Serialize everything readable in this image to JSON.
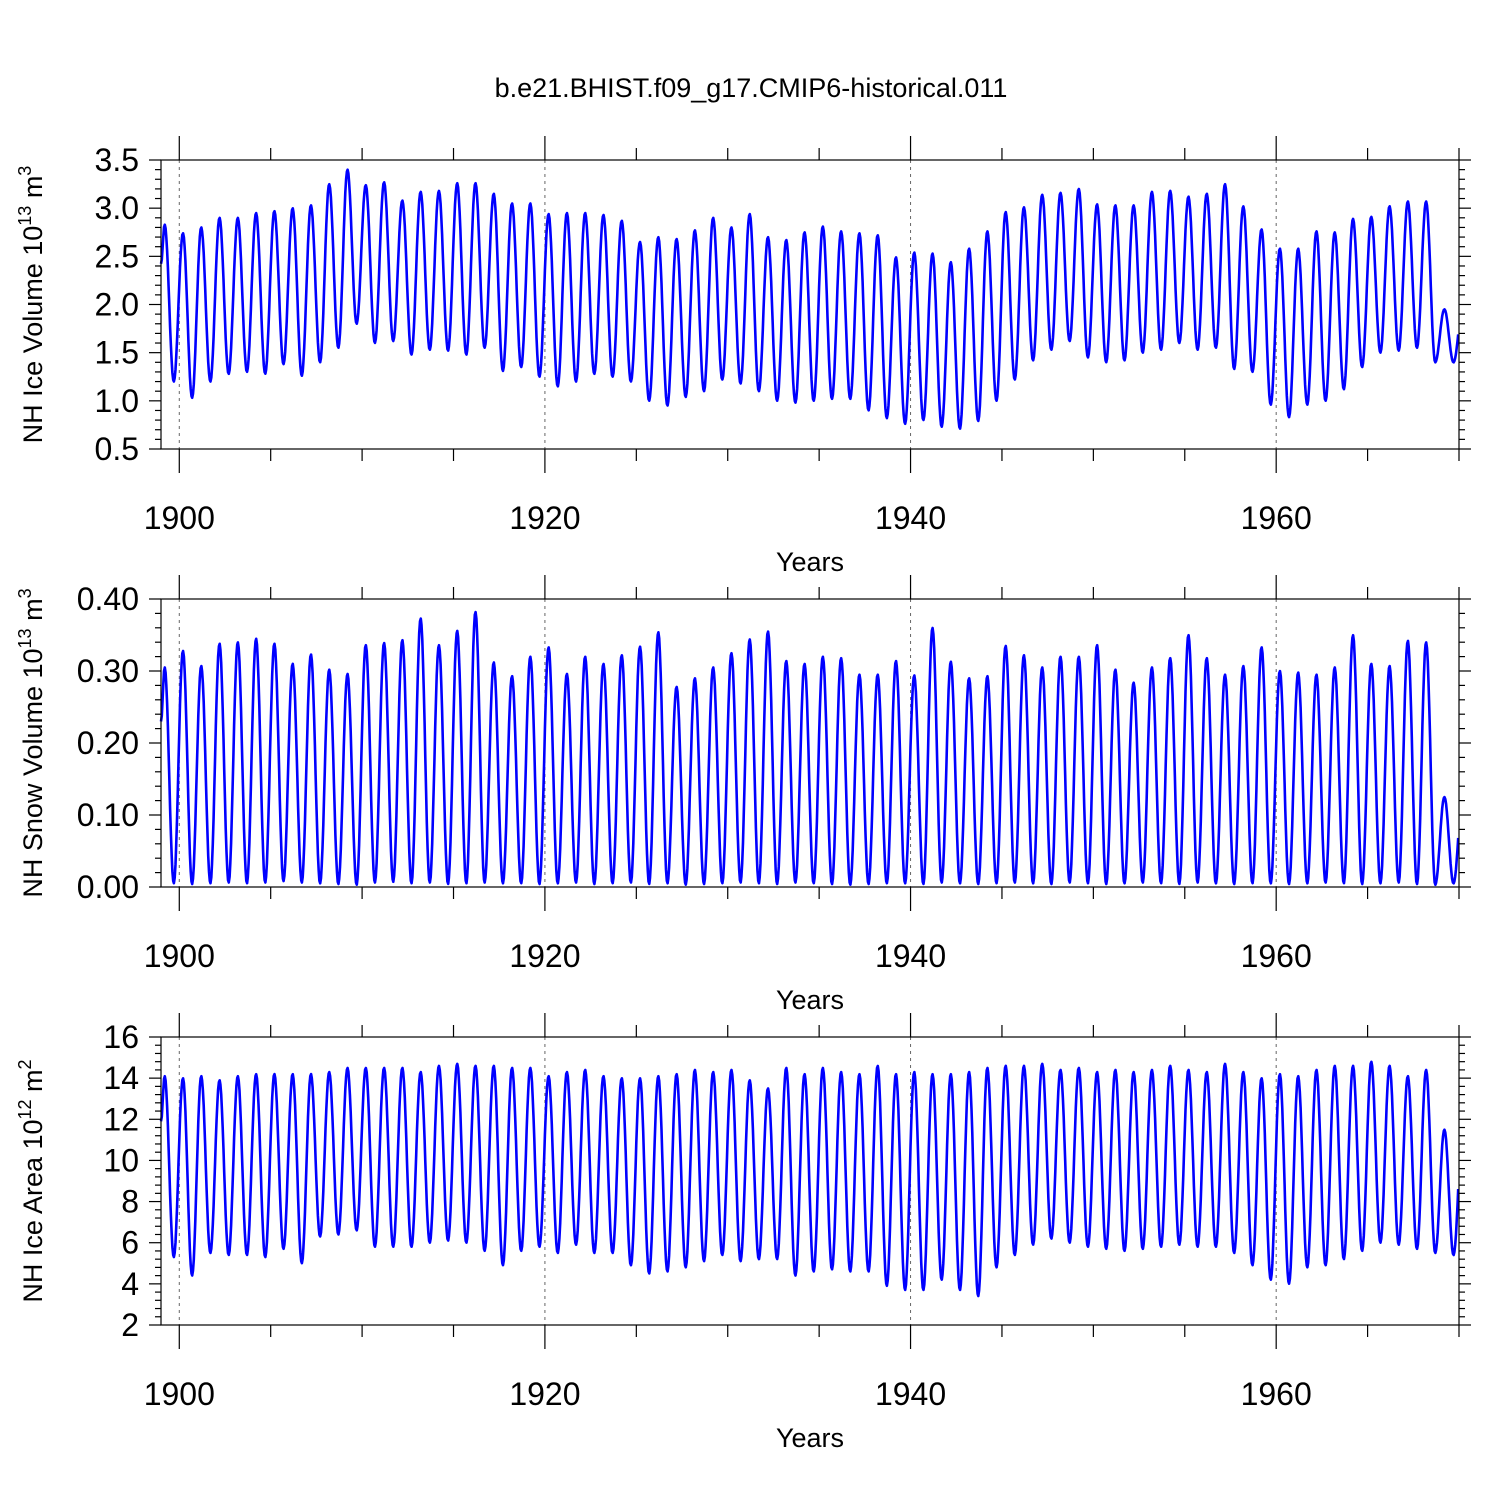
{
  "title": "b.e21.BHIST.f09_g17.CMIP6-historical.011",
  "line_color": "#0000ff",
  "grid_years": [
    1900,
    1920,
    1940,
    1960
  ],
  "chart_data": [
    {
      "type": "line",
      "ylabel": "NH Ice Volume 10",
      "ylabel_exp": "13",
      "ylabel_unit": "m",
      "ylabel_unit_exp": "3",
      "xlabel": "Years",
      "xlim": [
        1899.0,
        1970.0
      ],
      "ylim": [
        0.5,
        3.5
      ],
      "yticks": [
        0.5,
        1.0,
        1.5,
        2.0,
        2.5,
        3.0,
        3.5
      ],
      "ytick_labels": [
        "0.5",
        "1.0",
        "1.5",
        "2.0",
        "2.5",
        "3.0",
        "3.5"
      ],
      "xticks": [
        1900,
        1920,
        1940,
        1960
      ],
      "xtick_labels": [
        "1900",
        "1920",
        "1940",
        "1960"
      ],
      "series_name": "NH Ice Volume",
      "start_year": 1899,
      "annual_max": [
        2.83,
        2.74,
        2.8,
        2.9,
        2.9,
        2.95,
        2.97,
        3.0,
        3.03,
        3.25,
        3.4,
        3.24,
        3.27,
        3.08,
        3.17,
        3.18,
        3.26,
        3.26,
        3.15,
        3.05,
        3.05,
        2.94,
        2.95,
        2.95,
        2.93,
        2.87,
        2.65,
        2.7,
        2.68,
        2.77,
        2.9,
        2.8,
        2.94,
        2.7,
        2.67,
        2.75,
        2.81,
        2.76,
        2.74,
        2.72,
        2.49,
        2.54,
        2.53,
        2.44,
        2.58,
        2.76,
        2.96,
        3.01,
        3.14,
        3.16,
        3.2,
        3.04,
        3.03,
        3.03,
        3.17,
        3.18,
        3.12,
        3.15,
        3.25,
        3.02,
        2.78,
        2.58,
        2.58,
        2.76,
        2.75,
        2.89,
        2.91,
        3.02,
        3.07,
        3.07,
        1.95
      ],
      "annual_min": [
        1.2,
        1.03,
        1.2,
        1.28,
        1.3,
        1.28,
        1.38,
        1.26,
        1.4,
        1.55,
        1.8,
        1.6,
        1.62,
        1.48,
        1.53,
        1.52,
        1.48,
        1.55,
        1.31,
        1.35,
        1.25,
        1.15,
        1.2,
        1.28,
        1.25,
        1.2,
        1.0,
        0.95,
        1.04,
        1.1,
        1.22,
        1.18,
        1.1,
        1.0,
        0.98,
        1.0,
        1.02,
        1.02,
        0.9,
        0.82,
        0.76,
        0.8,
        0.73,
        0.71,
        0.79,
        1.0,
        1.22,
        1.42,
        1.53,
        1.62,
        1.45,
        1.4,
        1.42,
        1.5,
        1.53,
        1.6,
        1.53,
        1.55,
        1.33,
        1.3,
        0.96,
        0.83,
        0.96,
        1.0,
        1.12,
        1.35,
        1.5,
        1.52,
        1.55,
        1.4,
        1.4
      ]
    },
    {
      "type": "line",
      "ylabel": "NH Snow Volume 10",
      "ylabel_exp": "13",
      "ylabel_unit": "m",
      "ylabel_unit_exp": "3",
      "xlabel": "Years",
      "xlim": [
        1899.0,
        1970.0
      ],
      "ylim": [
        0.0,
        0.4
      ],
      "yticks": [
        0.0,
        0.1,
        0.2,
        0.3,
        0.4
      ],
      "ytick_labels": [
        "0.00",
        "0.10",
        "0.20",
        "0.30",
        "0.40"
      ],
      "xticks": [
        1900,
        1920,
        1940,
        1960
      ],
      "xtick_labels": [
        "1900",
        "1920",
        "1940",
        "1960"
      ],
      "series_name": "NH Snow Volume",
      "start_year": 1899,
      "annual_max": [
        0.305,
        0.328,
        0.307,
        0.338,
        0.34,
        0.345,
        0.338,
        0.31,
        0.323,
        0.302,
        0.296,
        0.336,
        0.339,
        0.343,
        0.373,
        0.336,
        0.356,
        0.382,
        0.312,
        0.293,
        0.32,
        0.333,
        0.296,
        0.32,
        0.31,
        0.322,
        0.334,
        0.354,
        0.278,
        0.29,
        0.305,
        0.325,
        0.344,
        0.355,
        0.314,
        0.31,
        0.32,
        0.318,
        0.295,
        0.295,
        0.314,
        0.294,
        0.36,
        0.313,
        0.29,
        0.293,
        0.335,
        0.322,
        0.305,
        0.32,
        0.32,
        0.336,
        0.302,
        0.284,
        0.305,
        0.318,
        0.35,
        0.318,
        0.295,
        0.307,
        0.333,
        0.3,
        0.298,
        0.295,
        0.305,
        0.35,
        0.31,
        0.307,
        0.342,
        0.34,
        0.125
      ],
      "annual_min": [
        0.005,
        0.004,
        0.005,
        0.006,
        0.005,
        0.006,
        0.008,
        0.006,
        0.005,
        0.004,
        0.003,
        0.006,
        0.007,
        0.005,
        0.006,
        0.004,
        0.005,
        0.006,
        0.005,
        0.005,
        0.004,
        0.005,
        0.006,
        0.004,
        0.005,
        0.006,
        0.004,
        0.005,
        0.003,
        0.004,
        0.005,
        0.006,
        0.005,
        0.004,
        0.006,
        0.005,
        0.004,
        0.003,
        0.004,
        0.005,
        0.005,
        0.004,
        0.006,
        0.005,
        0.004,
        0.005,
        0.006,
        0.005,
        0.004,
        0.006,
        0.005,
        0.004,
        0.005,
        0.006,
        0.005,
        0.004,
        0.006,
        0.005,
        0.004,
        0.005,
        0.005,
        0.004,
        0.005,
        0.006,
        0.005,
        0.004,
        0.005,
        0.006,
        0.004,
        0.003,
        0.005
      ]
    },
    {
      "type": "line",
      "ylabel": "NH Ice Area 10",
      "ylabel_exp": "12",
      "ylabel_unit": "m",
      "ylabel_unit_exp": "2",
      "xlabel": "Years",
      "xlim": [
        1899.0,
        1970.0
      ],
      "ylim": [
        2,
        16
      ],
      "yticks": [
        2,
        4,
        6,
        8,
        10,
        12,
        14,
        16
      ],
      "ytick_labels": [
        "2",
        "4",
        "6",
        "8",
        "10",
        "12",
        "14",
        "16"
      ],
      "xticks": [
        1900,
        1920,
        1940,
        1960
      ],
      "xtick_labels": [
        "1900",
        "1920",
        "1940",
        "1960"
      ],
      "series_name": "NH Ice Area",
      "start_year": 1899,
      "annual_max": [
        14.1,
        14.0,
        14.1,
        13.9,
        14.1,
        14.2,
        14.2,
        14.2,
        14.2,
        14.3,
        14.5,
        14.5,
        14.5,
        14.5,
        14.3,
        14.6,
        14.7,
        14.6,
        14.6,
        14.5,
        14.5,
        14.1,
        14.3,
        14.4,
        14.1,
        14.0,
        14.0,
        14.1,
        14.2,
        14.4,
        14.3,
        14.4,
        13.9,
        13.5,
        14.5,
        14.2,
        14.5,
        14.3,
        14.2,
        14.6,
        14.2,
        14.3,
        14.2,
        14.2,
        14.3,
        14.5,
        14.6,
        14.6,
        14.7,
        14.4,
        14.5,
        14.3,
        14.4,
        14.3,
        14.4,
        14.6,
        14.4,
        14.3,
        14.7,
        14.3,
        14.0,
        14.2,
        14.1,
        14.4,
        14.6,
        14.6,
        14.8,
        14.6,
        14.1,
        14.4,
        11.5
      ],
      "annual_min": [
        5.3,
        4.4,
        5.5,
        5.4,
        5.4,
        5.3,
        5.7,
        5.0,
        6.3,
        6.4,
        6.6,
        5.8,
        5.8,
        5.8,
        6.0,
        6.1,
        6.0,
        5.6,
        4.9,
        5.6,
        5.8,
        5.5,
        5.9,
        5.5,
        5.5,
        4.9,
        4.5,
        4.6,
        4.8,
        5.1,
        5.4,
        5.1,
        5.2,
        5.2,
        4.4,
        4.6,
        4.7,
        4.6,
        4.6,
        3.9,
        3.7,
        3.7,
        4.2,
        3.7,
        3.4,
        4.8,
        5.4,
        5.9,
        6.2,
        6.0,
        5.8,
        5.7,
        5.6,
        5.7,
        5.8,
        5.9,
        5.8,
        5.8,
        5.5,
        4.9,
        4.2,
        4.0,
        4.8,
        4.9,
        5.2,
        5.6,
        6.0,
        5.9,
        5.7,
        5.5,
        5.4
      ]
    }
  ]
}
